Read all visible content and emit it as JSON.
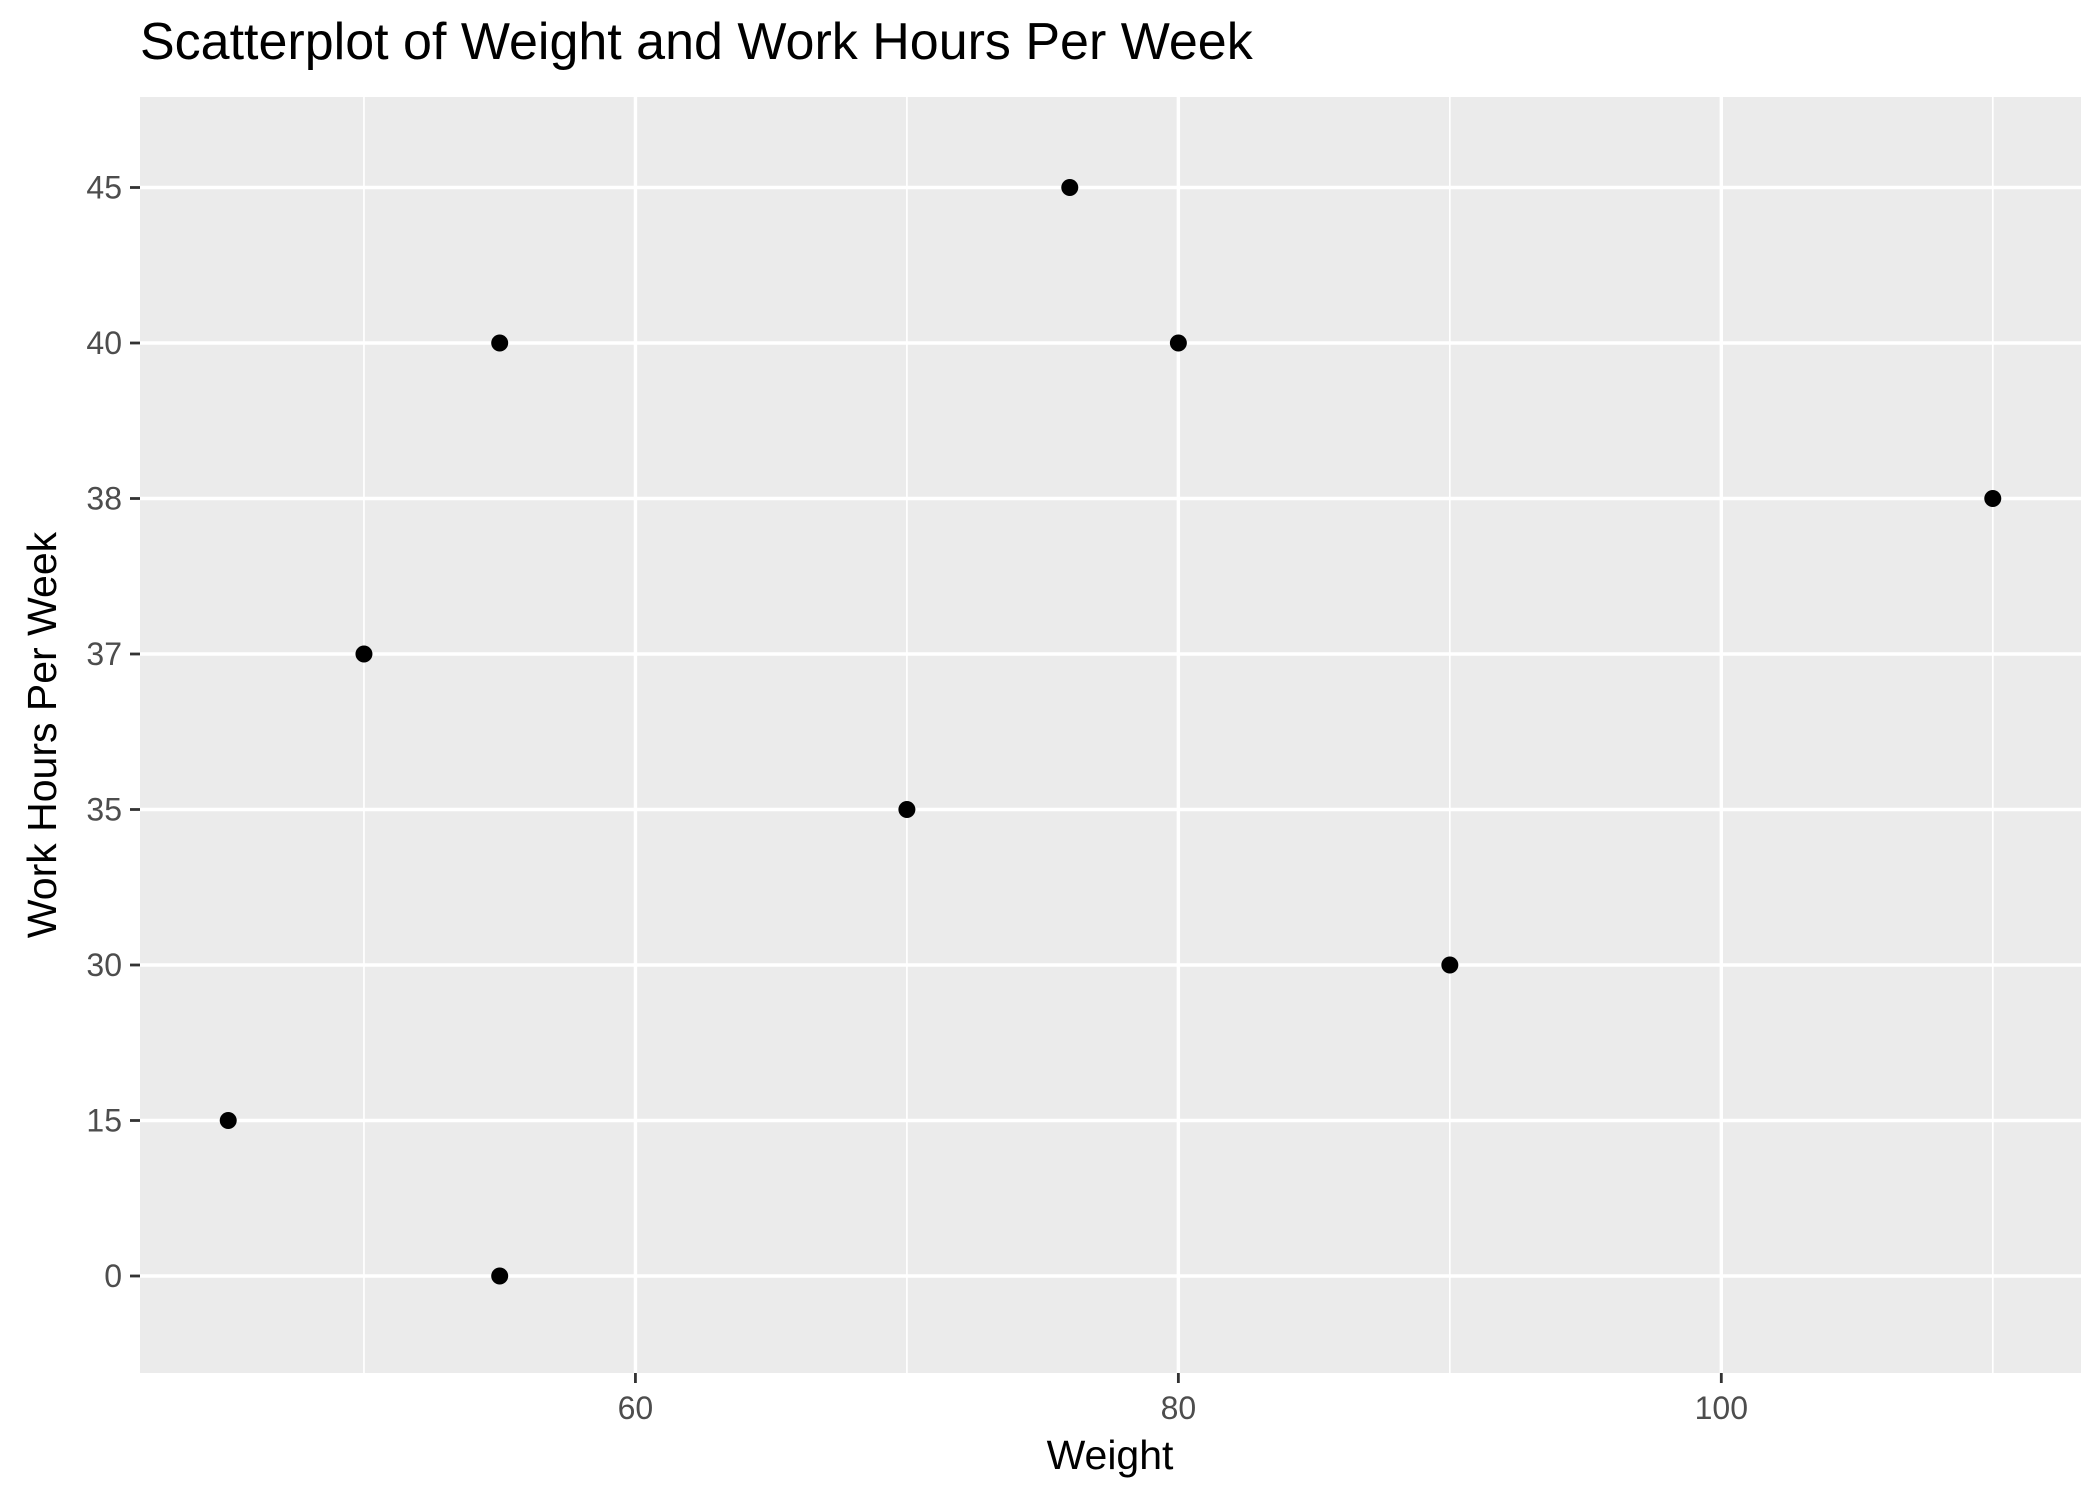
{
  "chart_data": {
    "type": "scatter",
    "title": "Scatterplot of Weight and Work Hours Per Week",
    "xlabel": "Weight",
    "ylabel": "Work Hours Per Week",
    "x_scale": "continuous",
    "y_scale": "discrete",
    "xlim": [
      41.75,
      113.25
    ],
    "x_ticks": [
      60,
      80,
      100
    ],
    "x_tick_labels": [
      "60",
      "80",
      "100"
    ],
    "x_minor_breaks": [
      50,
      70,
      90,
      110
    ],
    "y_categories": [
      "0",
      "15",
      "30",
      "35",
      "37",
      "38",
      "40",
      "45"
    ],
    "points": [
      {
        "x": 45,
        "y": "15"
      },
      {
        "x": 50,
        "y": "37"
      },
      {
        "x": 55,
        "y": "40"
      },
      {
        "x": 55,
        "y": "0"
      },
      {
        "x": 70,
        "y": "35"
      },
      {
        "x": 76,
        "y": "45"
      },
      {
        "x": 80,
        "y": "40"
      },
      {
        "x": 90,
        "y": "30"
      },
      {
        "x": 110,
        "y": "38"
      }
    ],
    "grid": true,
    "legend": "none",
    "colors": {
      "panel": "#ebebeb",
      "grid": "#ffffff",
      "point": "#000000",
      "tick_label": "#4d4d4d",
      "tick_mark": "#333333"
    }
  }
}
